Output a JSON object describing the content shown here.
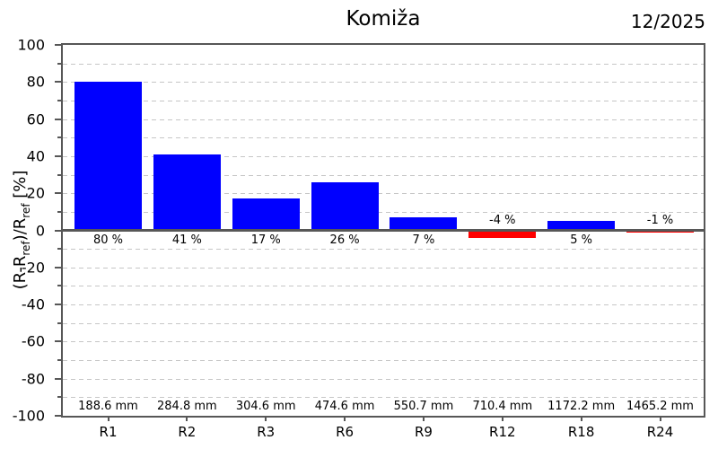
{
  "chart_data": {
    "type": "bar",
    "title": "Komiža",
    "period_label": "12/2025",
    "categories": [
      "R1",
      "R2",
      "R3",
      "R6",
      "R9",
      "R12",
      "R18",
      "R24"
    ],
    "values_percent": [
      80,
      41,
      17,
      26,
      7,
      -4,
      5,
      -1
    ],
    "bar_value_labels": [
      "80 %",
      "41 %",
      "17 %",
      "26 %",
      "7 %",
      "-4 %",
      "5 %",
      "-1 %"
    ],
    "reference_totals_mm": [
      "188.6 mm",
      "284.8 mm",
      "304.6 mm",
      "474.6 mm",
      "550.7 mm",
      "710.4 mm",
      "1172.2 mm",
      "1465.2 mm"
    ],
    "ylabel_segments": [
      {
        "text": "(R-R",
        "sub": false
      },
      {
        "text": "ref",
        "sub": true
      },
      {
        "text": ")/R",
        "sub": false
      },
      {
        "text": "ref",
        "sub": true
      },
      {
        "text": " [%]",
        "sub": false
      }
    ],
    "yticks": [
      100,
      80,
      60,
      40,
      20,
      0,
      -20,
      -40,
      -60,
      -80,
      -100
    ],
    "ylim": [
      -100,
      100
    ],
    "grid_step": 10,
    "grid_style": "dashed horizontal",
    "legend_position": "none",
    "colors": {
      "positive_bar": "#0000ff",
      "negative_bar": "#ff0000",
      "grid_line": "#c6c6c6",
      "axis": "#575757",
      "text": "#000000",
      "background": "#ffffff"
    }
  }
}
